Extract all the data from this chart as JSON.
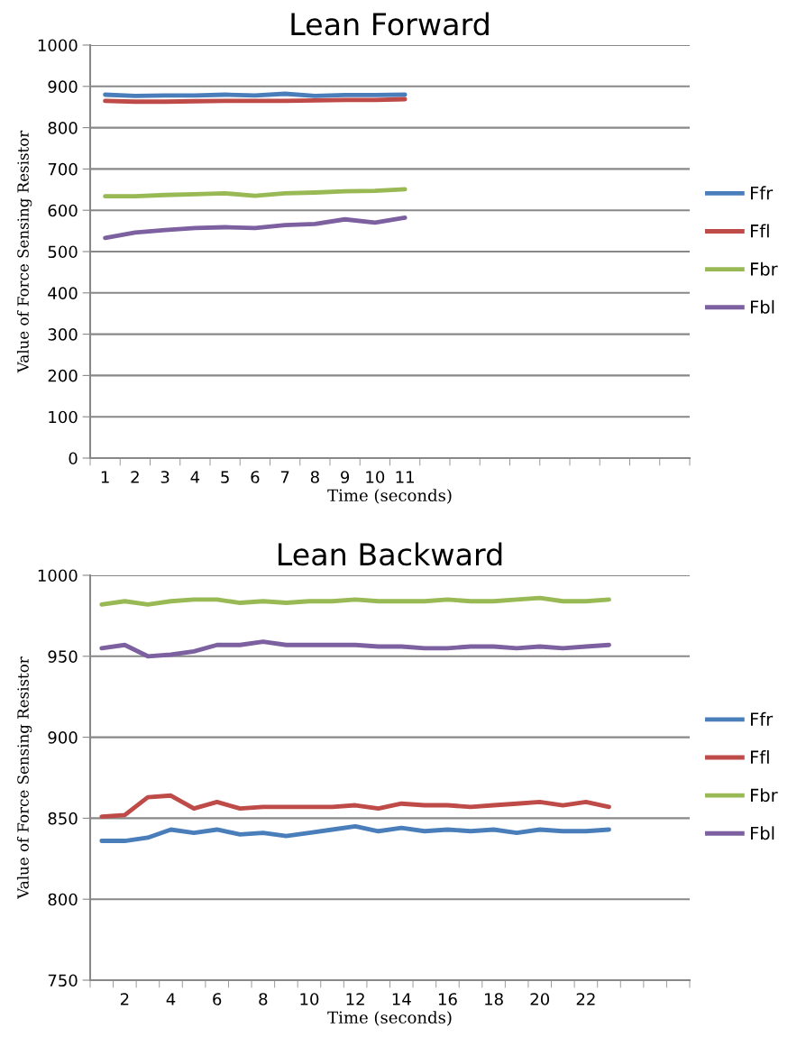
{
  "chart_data": [
    {
      "type": "line",
      "title": "Lean Forward",
      "xlabel": "Time (seconds)",
      "ylabel": "Value of Force Sensing Resistor",
      "categories": [
        "1",
        "2",
        "3",
        "4",
        "5",
        "6",
        "7",
        "8",
        "9",
        "10",
        "11",
        null,
        null,
        null,
        null,
        null,
        null,
        null,
        null,
        null
      ],
      "ylim": [
        0,
        1000
      ],
      "yticks": [
        0,
        100,
        200,
        300,
        400,
        500,
        600,
        700,
        800,
        900,
        1000
      ],
      "grid": "y",
      "legend": "right",
      "marker": "none",
      "series": [
        {
          "name": "Ffr",
          "color": "#4a7ebb",
          "values": [
            880,
            877,
            878,
            878,
            880,
            878,
            882,
            877,
            879,
            879,
            880,
            null,
            null,
            null,
            null,
            null,
            null,
            null,
            null,
            null
          ]
        },
        {
          "name": "Ffl",
          "color": "#be4b48",
          "values": [
            865,
            863,
            863,
            864,
            865,
            865,
            865,
            866,
            867,
            867,
            869,
            null,
            null,
            null,
            null,
            null,
            null,
            null,
            null,
            null
          ]
        },
        {
          "name": "Fbr",
          "color": "#98b954",
          "values": [
            634,
            634,
            637,
            639,
            641,
            635,
            641,
            643,
            646,
            647,
            651,
            null,
            null,
            null,
            null,
            null,
            null,
            null,
            null,
            null
          ]
        },
        {
          "name": "Fbl",
          "color": "#7d60a0",
          "values": [
            533,
            546,
            552,
            557,
            559,
            557,
            564,
            567,
            578,
            570,
            582,
            null,
            null,
            null,
            null,
            null,
            null,
            null,
            null,
            null
          ]
        }
      ]
    },
    {
      "type": "line",
      "title": "Lean Backward",
      "xlabel": "Time (seconds)",
      "ylabel": "Value of Force Sensing Resistor",
      "categories": [
        null,
        "2",
        null,
        "4",
        null,
        "6",
        null,
        "8",
        null,
        "10",
        null,
        "12",
        null,
        "14",
        null,
        "16",
        null,
        "18",
        null,
        "20",
        null,
        "22",
        null,
        null,
        null,
        null
      ],
      "ylim": [
        750,
        1000
      ],
      "yticks": [
        750,
        800,
        850,
        900,
        950,
        1000
      ],
      "grid": "y",
      "legend": "right",
      "marker": "none",
      "series": [
        {
          "name": "Ffr",
          "color": "#4a7ebb",
          "values": [
            836,
            836,
            838,
            843,
            841,
            843,
            840,
            841,
            839,
            841,
            843,
            845,
            842,
            844,
            842,
            843,
            842,
            843,
            841,
            843,
            842,
            842,
            843,
            null,
            null,
            null
          ]
        },
        {
          "name": "Ffl",
          "color": "#be4b48",
          "values": [
            851,
            852,
            863,
            864,
            856,
            860,
            856,
            857,
            857,
            857,
            857,
            858,
            856,
            859,
            858,
            858,
            857,
            858,
            859,
            860,
            858,
            860,
            857,
            null,
            null,
            null
          ]
        },
        {
          "name": "Fbr",
          "color": "#98b954",
          "values": [
            982,
            984,
            982,
            984,
            985,
            985,
            983,
            984,
            983,
            984,
            984,
            985,
            984,
            984,
            984,
            985,
            984,
            984,
            985,
            986,
            984,
            984,
            985,
            null,
            null,
            null
          ]
        },
        {
          "name": "Fbl",
          "color": "#7d60a0",
          "values": [
            955,
            957,
            950,
            951,
            953,
            957,
            957,
            959,
            957,
            957,
            957,
            957,
            956,
            956,
            955,
            955,
            956,
            956,
            955,
            956,
            955,
            956,
            957,
            null,
            null,
            null
          ]
        }
      ]
    }
  ]
}
